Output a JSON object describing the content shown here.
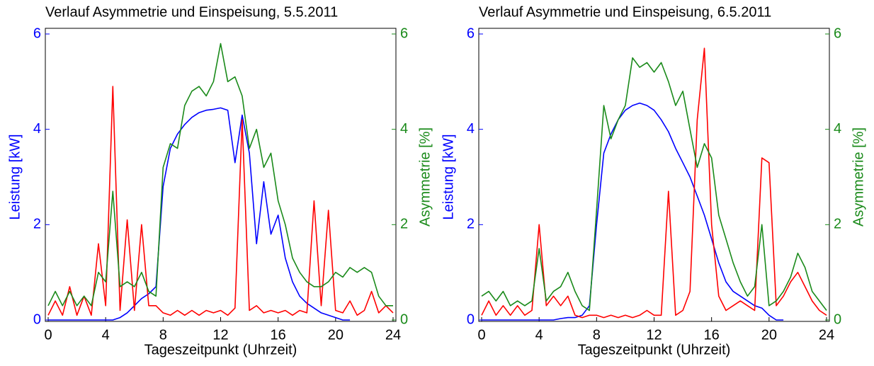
{
  "chart_data": [
    {
      "type": "line",
      "title": "Verlauf Asymmetrie und Einspeisung, 5.5.2011",
      "xlabel": "Tageszeitpunkt (Uhrzeit)",
      "ylabel": "Leistung [kW]",
      "y2label": "Asymmetrie [%]",
      "ycolor": "#0000ff",
      "y2color": "#1a8a1a",
      "x": [
        0,
        0.5,
        1,
        1.5,
        2,
        2.5,
        3,
        3.5,
        4,
        4.5,
        5,
        5.5,
        6,
        6.5,
        7,
        7.5,
        8,
        8.5,
        9,
        9.5,
        10,
        10.5,
        11,
        11.5,
        12,
        12.5,
        13,
        13.5,
        14,
        14.5,
        15,
        15.5,
        16,
        16.5,
        17,
        17.5,
        18,
        18.5,
        19,
        19.5,
        20,
        20.5,
        21,
        21.5,
        22,
        22.5,
        23,
        23.5,
        24
      ],
      "xlim": [
        0,
        24
      ],
      "xticks": [
        0,
        4,
        8,
        12,
        16,
        20,
        24
      ],
      "ylim": [
        0,
        6
      ],
      "yticks": [
        0,
        2,
        4,
        6
      ],
      "y2lim": [
        0,
        6
      ],
      "y2ticks": [
        0,
        2,
        4,
        6
      ],
      "series": [
        {
          "color": "#0000ff",
          "axis": "y",
          "values": [
            0,
            0,
            0,
            0,
            0,
            0,
            0,
            0,
            0,
            0,
            0.05,
            0.15,
            0.3,
            0.45,
            0.55,
            0.7,
            2.8,
            3.6,
            3.9,
            4.1,
            4.25,
            4.35,
            4.4,
            4.42,
            4.45,
            4.4,
            3.3,
            4.3,
            3.5,
            1.6,
            2.9,
            1.8,
            2.2,
            1.3,
            0.8,
            0.5,
            0.35,
            0.25,
            0.15,
            0.1,
            0.05,
            0,
            0,
            null,
            null,
            null,
            null,
            null,
            null
          ]
        },
        {
          "color": "#ff0000",
          "axis": "y",
          "values": [
            0.1,
            0.4,
            0.1,
            0.7,
            0.1,
            0.5,
            0.1,
            1.6,
            0.3,
            4.9,
            0.2,
            2.1,
            0.2,
            2.0,
            0.3,
            0.3,
            0.15,
            0.1,
            0.2,
            0.1,
            0.2,
            0.1,
            0.2,
            0.15,
            0.2,
            0.1,
            0.25,
            4.2,
            0.2,
            0.3,
            0.15,
            0.2,
            0.15,
            0.2,
            0.1,
            0.2,
            0.15,
            2.5,
            0.3,
            2.3,
            0.2,
            0.15,
            0.4,
            0.1,
            0.2,
            0.6,
            0.15,
            0.3,
            0.15
          ]
        },
        {
          "color": "#1a8a1a",
          "axis": "y2",
          "values": [
            0.3,
            0.6,
            0.3,
            0.6,
            0.3,
            0.5,
            0.3,
            1.0,
            0.8,
            2.7,
            0.7,
            0.8,
            0.7,
            1.0,
            0.6,
            0.5,
            3.2,
            3.7,
            3.6,
            4.5,
            4.8,
            4.9,
            4.7,
            5.0,
            5.8,
            5.0,
            5.1,
            4.7,
            3.6,
            4.0,
            3.2,
            3.5,
            2.5,
            2.0,
            1.3,
            1.0,
            0.8,
            0.7,
            0.7,
            0.8,
            1.0,
            0.9,
            1.1,
            1.0,
            1.1,
            1.0,
            0.5,
            0.3,
            0.3
          ]
        }
      ]
    },
    {
      "type": "line",
      "title": "Verlauf Asymmetrie und Einspeisung, 6.5.2011",
      "xlabel": "Tageszeitpunkt (Uhrzeit)",
      "ylabel": "Leistung [kW]",
      "y2label": "Asymmetrie [%]",
      "ycolor": "#0000ff",
      "y2color": "#1a8a1a",
      "x": [
        0,
        0.5,
        1,
        1.5,
        2,
        2.5,
        3,
        3.5,
        4,
        4.5,
        5,
        5.5,
        6,
        6.5,
        7,
        7.5,
        8,
        8.5,
        9,
        9.5,
        10,
        10.5,
        11,
        11.5,
        12,
        12.5,
        13,
        13.5,
        14,
        14.5,
        15,
        15.5,
        16,
        16.5,
        17,
        17.5,
        18,
        18.5,
        19,
        19.5,
        20,
        20.5,
        21,
        21.5,
        22,
        22.5,
        23,
        23.5,
        24
      ],
      "xlim": [
        0,
        24
      ],
      "xticks": [
        0,
        4,
        8,
        12,
        16,
        20,
        24
      ],
      "ylim": [
        0,
        6
      ],
      "yticks": [
        0,
        2,
        4,
        6
      ],
      "y2lim": [
        0,
        6
      ],
      "y2ticks": [
        0,
        2,
        4,
        6
      ],
      "series": [
        {
          "color": "#0000ff",
          "axis": "y",
          "values": [
            0,
            0,
            0,
            0,
            0,
            0,
            0,
            0,
            0,
            0,
            0,
            0.03,
            0.05,
            0.05,
            0.1,
            0.3,
            2.0,
            3.5,
            3.9,
            4.2,
            4.4,
            4.5,
            4.55,
            4.5,
            4.4,
            4.2,
            3.95,
            3.6,
            3.3,
            3.0,
            2.6,
            2.2,
            1.7,
            1.2,
            0.8,
            0.6,
            0.5,
            0.4,
            0.3,
            0.25,
            0.1,
            0,
            0,
            null,
            null,
            null,
            null,
            null,
            null
          ]
        },
        {
          "color": "#ff0000",
          "axis": "y",
          "values": [
            0.1,
            0.4,
            0.1,
            0.3,
            0.1,
            0.3,
            0.1,
            0.2,
            2.0,
            0.3,
            0.5,
            0.3,
            0.5,
            0.1,
            0.05,
            0.1,
            0.1,
            0.05,
            0.1,
            0.05,
            0.1,
            0.05,
            0.1,
            0.2,
            0.1,
            0.1,
            2.7,
            0.1,
            0.2,
            0.6,
            4.2,
            5.7,
            2.0,
            0.5,
            0.2,
            0.3,
            0.4,
            0.3,
            0.2,
            3.4,
            3.3,
            0.3,
            0.5,
            0.8,
            1.0,
            0.7,
            0.4,
            0.2,
            0.1
          ]
        },
        {
          "color": "#1a8a1a",
          "axis": "y2",
          "values": [
            0.5,
            0.6,
            0.4,
            0.6,
            0.3,
            0.4,
            0.3,
            0.4,
            1.5,
            0.4,
            0.6,
            0.7,
            1.0,
            0.6,
            0.3,
            0.2,
            2.3,
            4.5,
            3.8,
            4.2,
            4.5,
            5.5,
            5.3,
            5.4,
            5.2,
            5.4,
            5.0,
            4.5,
            4.8,
            4.0,
            3.2,
            3.7,
            3.4,
            2.2,
            1.7,
            1.2,
            0.8,
            0.5,
            0.7,
            2.0,
            0.3,
            0.4,
            0.6,
            0.9,
            1.4,
            1.1,
            0.6,
            0.4,
            0.2
          ]
        }
      ]
    }
  ]
}
